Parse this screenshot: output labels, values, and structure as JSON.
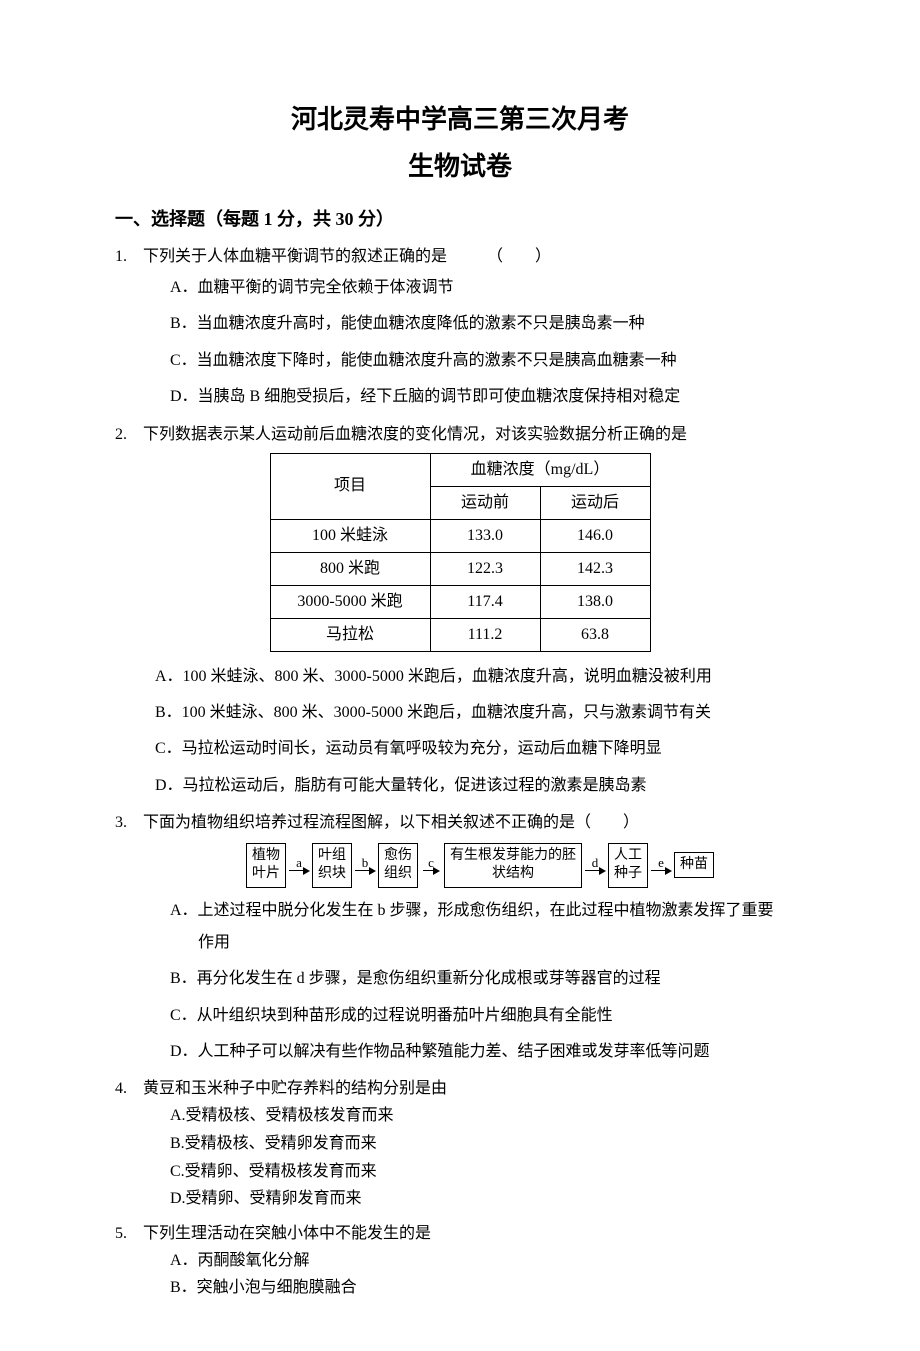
{
  "title_main": "河北灵寿中学高三第三次月考",
  "title_sub": "生物试卷",
  "section1": "一、选择题（每题 1 分，共 30 分）",
  "q1": {
    "num": "1.",
    "stem": "下列关于人体血糖平衡调节的叙述正确的是　　　（　　）",
    "A": "A．血糖平衡的调节完全依赖于体液调节",
    "B": "B．当血糖浓度升高时，能使血糖浓度降低的激素不只是胰岛素一种",
    "C": "C．当血糖浓度下降时，能使血糖浓度升高的激素不只是胰高血糖素一种",
    "D": "D．当胰岛 B 细胞受损后，经下丘脑的调节即可使血糖浓度保持相对稳定"
  },
  "q2": {
    "num": "2.",
    "stem": "下列数据表示某人运动前后血糖浓度的变化情况，对该实验数据分析正确的是",
    "table": {
      "header_item": "项目",
      "header_conc": "血糖浓度（mg/dL）",
      "sub_before": "运动前",
      "sub_after": "运动后",
      "rows": [
        {
          "item": "100 米蛙泳",
          "before": "133.0",
          "after": "146.0"
        },
        {
          "item": "800 米跑",
          "before": "122.3",
          "after": "142.3"
        },
        {
          "item": "3000-5000 米跑",
          "before": "117.4",
          "after": "138.0"
        },
        {
          "item": "马拉松",
          "before": "111.2",
          "after": "63.8"
        }
      ]
    },
    "A": "A．100 米蛙泳、800 米、3000-5000 米跑后，血糖浓度升高，说明血糖没被利用",
    "B": "B．100 米蛙泳、800 米、3000-5000 米跑后，血糖浓度升高，只与激素调节有关",
    "C": "C．马拉松运动时间长，运动员有氧呼吸较为充分，运动后血糖下降明显",
    "D": "D．马拉松运动后，脂肪有可能大量转化，促进该过程的激素是胰岛素"
  },
  "q3": {
    "num": "3.",
    "stem": "下面为植物组织培养过程流程图解，以下相关叙述不正确的是（　　）",
    "flow": {
      "boxes": [
        "植物\n叶片",
        "叶组\n织块",
        "愈伤\n组织",
        "有生根发芽能力的胚\n状结构",
        "人工\n种子",
        "种苗"
      ],
      "labels": [
        "a",
        "b",
        "c",
        "d",
        "e"
      ]
    },
    "A": "A．上述过程中脱分化发生在 b 步骤，形成愈伤组织，在此过程中植物激素发挥了重要",
    "A2": "作用",
    "B": "B．再分化发生在 d 步骤，是愈伤组织重新分化成根或芽等器官的过程",
    "C": "C．从叶组织块到种苗形成的过程说明番茄叶片细胞具有全能性",
    "D": "D．人工种子可以解决有些作物品种繁殖能力差、结子困难或发芽率低等问题"
  },
  "q4": {
    "num": "4.",
    "stem": "黄豆和玉米种子中贮存养料的结构分别是由",
    "A": "A.受精极核、受精极核发育而来",
    "B": "B.受精极核、受精卵发育而来",
    "C": "C.受精卵、受精极核发育而来",
    "D": "D.受精卵、受精卵发育而来"
  },
  "q5": {
    "num": "5.",
    "stem": "下列生理活动在突触小体中不能发生的是",
    "A": "A．丙酮酸氧化分解",
    "B": "B．突触小泡与细胞膜融合"
  }
}
